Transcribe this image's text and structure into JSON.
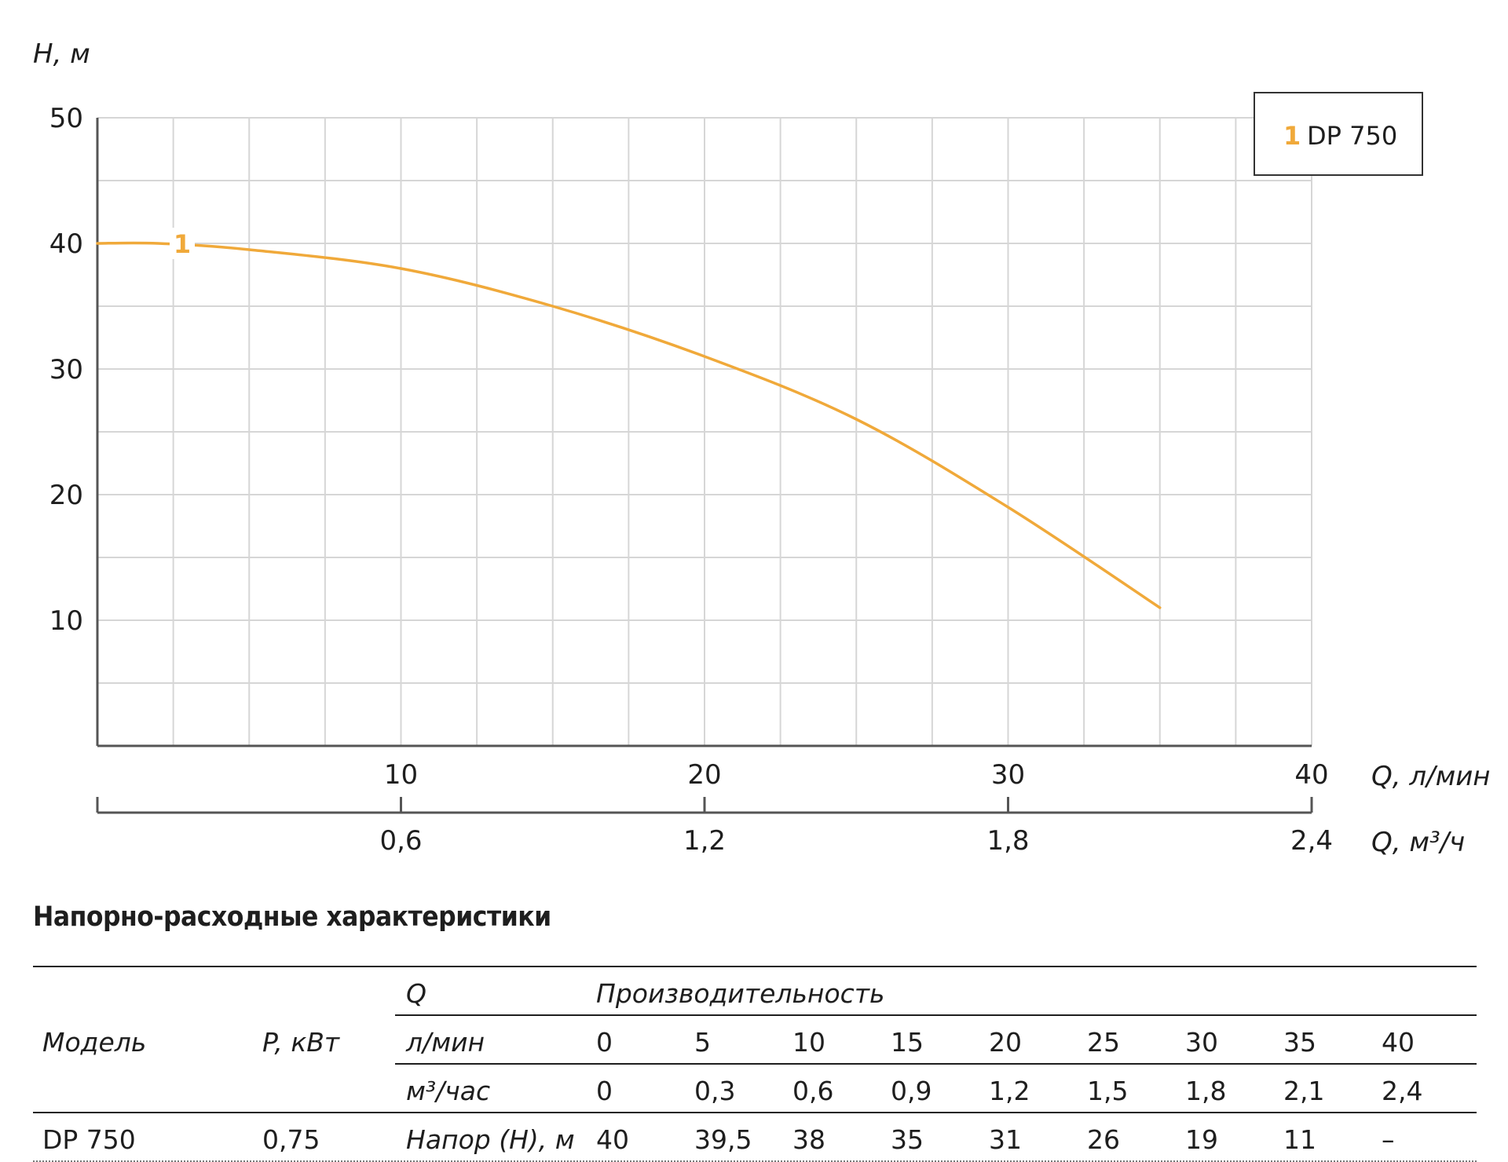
{
  "chart_data": {
    "type": "line",
    "ylabel": "H, м",
    "xlabel": "Q, л/мин",
    "xlabel2": "Q, м³/ч",
    "xlim": [
      0,
      40
    ],
    "ylim": [
      0,
      50
    ],
    "yticks": [
      "10",
      "20",
      "30",
      "40",
      "50"
    ],
    "xticks": [
      "10",
      "20",
      "30",
      "40"
    ],
    "xticks2": [
      "0,6",
      "1,2",
      "1,8",
      "2,4"
    ],
    "grid": true,
    "legend": {
      "number": "1",
      "label": "DP 750",
      "position": "top-right"
    },
    "series": [
      {
        "name": "DP 750",
        "color": "#f0a93a",
        "curve_label": "1",
        "x": [
          0,
          2,
          5,
          10,
          15,
          20,
          25,
          30,
          35
        ],
        "y": [
          40,
          40,
          39.5,
          38,
          35,
          31,
          26,
          19,
          11
        ]
      }
    ]
  },
  "table": {
    "title": "Напорно-расходные характеристики",
    "header": {
      "model": "Модель",
      "power": "P, кВт",
      "q": "Q",
      "productivity": "Производительность",
      "lmin": "л/мин",
      "m3h": "м³/час"
    },
    "lmin_values": [
      "0",
      "5",
      "10",
      "15",
      "20",
      "25",
      "30",
      "35",
      "40"
    ],
    "m3h_values": [
      "0",
      "0,3",
      "0,6",
      "0,9",
      "1,2",
      "1,5",
      "1,8",
      "2,1",
      "2,4"
    ],
    "rows": [
      {
        "model": "DP 750",
        "power": "0,75",
        "param": "Напор (H), м",
        "values": [
          "40",
          "39,5",
          "38",
          "35",
          "31",
          "26",
          "19",
          "11",
          "–"
        ]
      }
    ]
  }
}
